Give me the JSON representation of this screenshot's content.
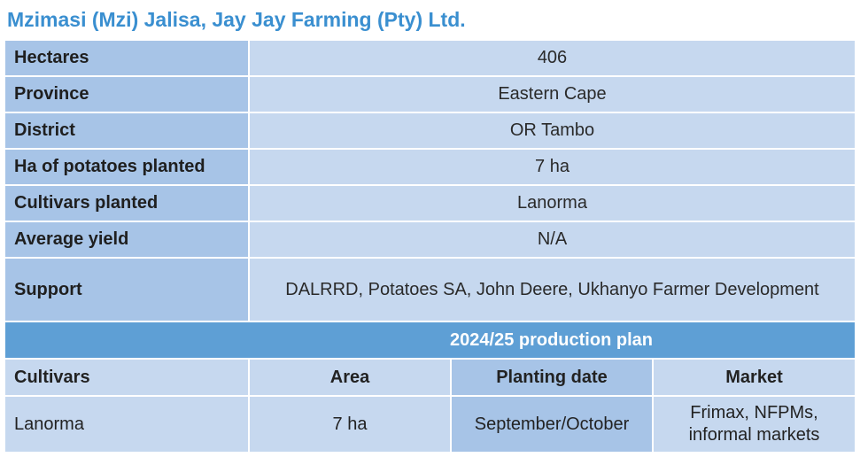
{
  "title": "Mzimasi (Mzi) Jalisa, Jay Jay Farming (Pty) Ltd.",
  "info_rows": [
    {
      "label": "Hectares",
      "value": "406"
    },
    {
      "label": "Province",
      "value": "Eastern Cape"
    },
    {
      "label": "District",
      "value": "OR Tambo"
    },
    {
      "label": "Ha of potatoes planted",
      "value": "7 ha"
    },
    {
      "label": "Cultivars planted",
      "value": "Lanorma"
    },
    {
      "label": "Average yield",
      "value": "N/A"
    },
    {
      "label": "Support",
      "value": "DALRRD, Potatoes SA, John Deere, Ukhanyo Farmer Development"
    }
  ],
  "plan": {
    "heading": "2024/25 production plan",
    "columns": [
      "Cultivars",
      "Area",
      "Planting date",
      "Market"
    ],
    "rows": [
      [
        "Lanorma",
        "7 ha",
        "September/October",
        "Frimax, NFPMs, informal markets"
      ]
    ]
  }
}
